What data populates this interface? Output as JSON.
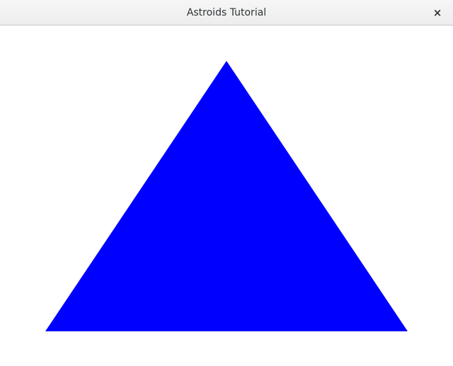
{
  "window": {
    "title": "Astroids Tutorial",
    "close_glyph": "×",
    "close_icon": "close-icon"
  },
  "scene": {
    "background_color": "#ffffff",
    "shape": "triangle",
    "fill_color": "#0000ff"
  }
}
